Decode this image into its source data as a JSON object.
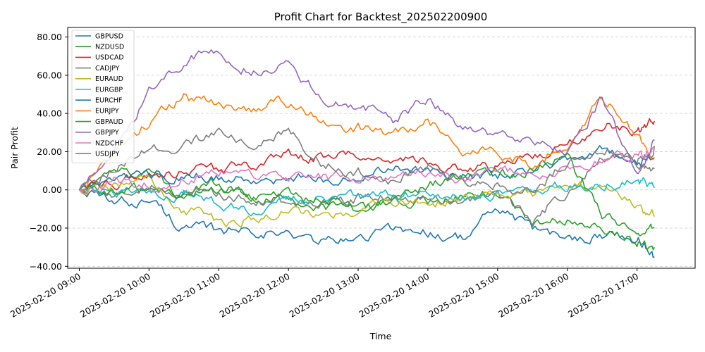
{
  "chart_data": {
    "type": "line",
    "title": "Profit Chart for Backtest_202502200900",
    "xlabel": "Time",
    "ylabel": "Pair Profit",
    "x_range": [
      "2025-02-20 08:50",
      "2025-02-20 17:50"
    ],
    "ylim": [
      -41,
      85
    ],
    "y_ticks": [
      -40,
      -20,
      0,
      20,
      40,
      60,
      80
    ],
    "y_tick_labels": [
      "−40.00",
      "−20.00",
      "0.00",
      "20.00",
      "40.00",
      "60.00",
      "80.00"
    ],
    "x_ticks": [
      "2025-02-20 09:00",
      "2025-02-20 10:00",
      "2025-02-20 11:00",
      "2025-02-20 12:00",
      "2025-02-20 13:00",
      "2025-02-20 14:00",
      "2025-02-20 15:00",
      "2025-02-20 16:00",
      "2025-02-20 17:00"
    ],
    "x_tick_labels": [
      "2025-02-20 09:00",
      "2025-02-20 10:00",
      "2025-02-20 11:00",
      "2025-02-20 12:00",
      "2025-02-20 13:00",
      "2025-02-20 14:00",
      "2025-02-20 15:00",
      "2025-02-20 16:00",
      "2025-02-20 17:00"
    ],
    "grid": "y-dashed",
    "legend_position": "top-left",
    "x_times": [
      "09:00",
      "09:30",
      "10:00",
      "10:30",
      "11:00",
      "11:30",
      "12:00",
      "12:30",
      "13:00",
      "13:30",
      "14:00",
      "14:30",
      "15:00",
      "15:30",
      "16:00",
      "16:30",
      "17:00",
      "17:15"
    ],
    "series": [
      {
        "name": "GBPUSD",
        "color": "#1f77b4",
        "values": [
          0,
          -8,
          -5,
          -20,
          -22,
          -20,
          -24,
          -27,
          -26,
          -20,
          -22,
          -25,
          -10,
          -21,
          -26,
          -23,
          -25,
          -35
        ]
      },
      {
        "name": "NZDUSD",
        "color": "#2ca02c",
        "values": [
          0,
          8,
          10,
          -4,
          4,
          -2,
          -5,
          -8,
          -11,
          -4,
          -6,
          -2,
          -3,
          -18,
          -14,
          -18,
          -28,
          -30
        ]
      },
      {
        "name": "USDCAD",
        "color": "#d62728",
        "values": [
          0,
          3,
          8,
          10,
          10,
          14,
          18,
          17,
          18,
          16,
          14,
          10,
          12,
          18,
          22,
          35,
          30,
          36
        ]
      },
      {
        "name": "CADJPY",
        "color": "#7f7f7f",
        "values": [
          0,
          -2,
          2,
          0,
          -3,
          -4,
          -8,
          -6,
          -4,
          -2,
          -4,
          -6,
          -2,
          -15,
          0,
          18,
          16,
          23
        ]
      },
      {
        "name": "EURAUD",
        "color": "#bcbd22",
        "values": [
          0,
          2,
          5,
          -10,
          -18,
          -14,
          -10,
          -12,
          -14,
          -6,
          -8,
          -4,
          -2,
          -4,
          2,
          5,
          -10,
          -14
        ]
      },
      {
        "name": "EURGBP",
        "color": "#17becf",
        "values": [
          0,
          -2,
          -2,
          -3,
          -8,
          -10,
          -6,
          -4,
          -2,
          -1,
          -3,
          -4,
          -3,
          0,
          2,
          3,
          5,
          1
        ]
      },
      {
        "name": "EURCHF",
        "color": "#1f77b4",
        "values": [
          0,
          3,
          8,
          8,
          6,
          5,
          7,
          6,
          8,
          10,
          11,
          8,
          8,
          12,
          16,
          22,
          14,
          17
        ]
      },
      {
        "name": "EURJPY",
        "color": "#ff7f0e",
        "values": [
          0,
          20,
          35,
          48,
          44,
          42,
          46,
          36,
          33,
          30,
          36,
          22,
          20,
          14,
          26,
          48,
          30,
          17
        ]
      },
      {
        "name": "GBPAUD",
        "color": "#2ca02c",
        "values": [
          0,
          -2,
          0,
          -2,
          0,
          -4,
          -3,
          -6,
          -9,
          -6,
          3,
          6,
          8,
          10,
          16,
          -14,
          -22,
          -20
        ]
      },
      {
        "name": "GBPJPY",
        "color": "#9467bd",
        "values": [
          0,
          20,
          50,
          68,
          72,
          62,
          66,
          48,
          45,
          36,
          48,
          32,
          30,
          24,
          20,
          48,
          5,
          26
        ]
      },
      {
        "name": "NZDCHF",
        "color": "#e377c2",
        "values": [
          0,
          4,
          2,
          6,
          10,
          8,
          6,
          6,
          7,
          8,
          8,
          7,
          8,
          9,
          10,
          16,
          18,
          22
        ]
      },
      {
        "name": "USDJPY",
        "color": "#7f7f7f",
        "values": [
          0,
          10,
          20,
          22,
          30,
          25,
          30,
          14,
          10,
          6,
          12,
          4,
          2,
          0,
          14,
          22,
          14,
          11
        ]
      }
    ]
  }
}
